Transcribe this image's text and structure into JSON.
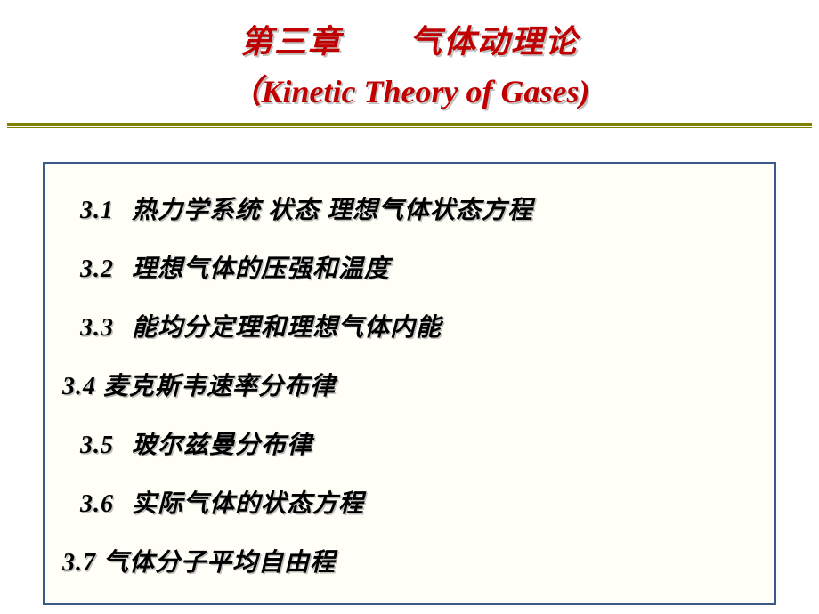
{
  "title": {
    "chinese": "第三章　　气体动理论",
    "english": "（Kinetic Theory of Gases)",
    "cn_color": "#c00000",
    "en_color": "#c00000",
    "fontsize": 36
  },
  "divider": {
    "color": "#808000",
    "double_line": true
  },
  "content_box": {
    "border_color": "#3a5a8a",
    "background_tint": "#ffffcc"
  },
  "toc": {
    "text_color": "#000000",
    "shadow_color": "#808080",
    "fontsize": 28,
    "items": [
      {
        "num": "3.1",
        "text": "热力学系统 状态 理想气体状态方程",
        "outdent": false
      },
      {
        "num": "3.2",
        "text": "理想气体的压强和温度",
        "outdent": false
      },
      {
        "num": "3.3",
        "text": "能均分定理和理想气体内能",
        "outdent": false
      },
      {
        "num": "3.4",
        "text": "麦克斯韦速率分布律",
        "outdent": true
      },
      {
        "num": "3.5",
        "text": "玻尔兹曼分布律",
        "outdent": false
      },
      {
        "num": "3.6",
        "text": "实际气体的状态方程",
        "outdent": false
      },
      {
        "num": "3.7",
        "text": "气体分子平均自由程",
        "outdent": true
      }
    ]
  }
}
